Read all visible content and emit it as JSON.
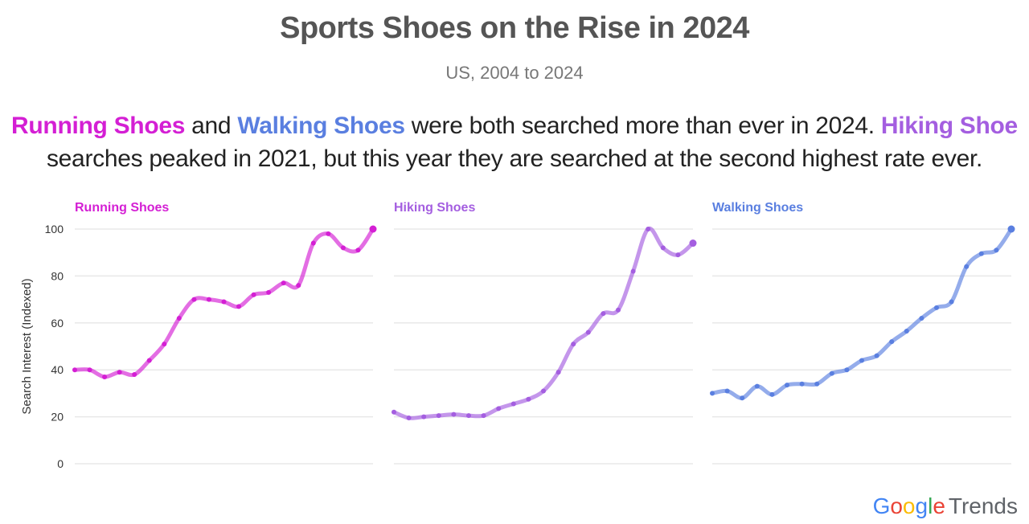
{
  "title": "Sports Shoes on the Rise in 2024",
  "subtitle": "US, 2004 to 2024",
  "description": {
    "s1": "Running Shoes",
    "t1": " and ",
    "s2": "Walking Shoes",
    "t2": " were both searched more than ever in 2024. ",
    "s3": "Hiking Shoe",
    "t3": " searches peaked in 2021, but this year they are searched at the second highest rate ever."
  },
  "colors": {
    "running": "#d41fd4",
    "hiking": "#a45ee0",
    "walking": "#5a7fe0",
    "grid": "#e8e8e8",
    "axis_text": "#333333"
  },
  "brand": {
    "google_letters": [
      "G",
      "o",
      "o",
      "g",
      "l",
      "e"
    ],
    "google_colors": [
      "#4285F4",
      "#EA4335",
      "#FBBC05",
      "#4285F4",
      "#34A853",
      "#EA4335"
    ],
    "trends": "Trends"
  },
  "chart_data": {
    "type": "line",
    "ylabel": "Search Interest (Indexed)",
    "ylim": [
      0,
      100
    ],
    "yticks": [
      0,
      20,
      40,
      60,
      80,
      100
    ],
    "grid": true,
    "x": [
      2004,
      2005,
      2006,
      2007,
      2008,
      2009,
      2010,
      2011,
      2012,
      2013,
      2014,
      2015,
      2016,
      2017,
      2018,
      2019,
      2020,
      2021,
      2022,
      2023,
      2024
    ],
    "series": [
      {
        "name": "Running Shoes",
        "values": [
          40,
          40,
          37,
          39,
          38,
          44,
          51,
          62,
          70,
          70,
          69,
          67,
          72,
          73,
          77,
          76,
          94,
          98,
          92,
          91,
          100
        ]
      },
      {
        "name": "Hiking Shoes",
        "values": [
          22,
          19.5,
          20,
          20.5,
          21,
          20.5,
          20.5,
          23.5,
          25.5,
          27.5,
          31,
          39,
          51,
          56,
          64,
          65.5,
          82,
          100,
          92,
          89,
          94
        ]
      },
      {
        "name": "Walking Shoes",
        "values": [
          30,
          31,
          28,
          33,
          29.5,
          33.5,
          34,
          34,
          38.5,
          40,
          44,
          46,
          52,
          56.5,
          62,
          66.5,
          69,
          84,
          89.5,
          91,
          100
        ]
      }
    ]
  }
}
